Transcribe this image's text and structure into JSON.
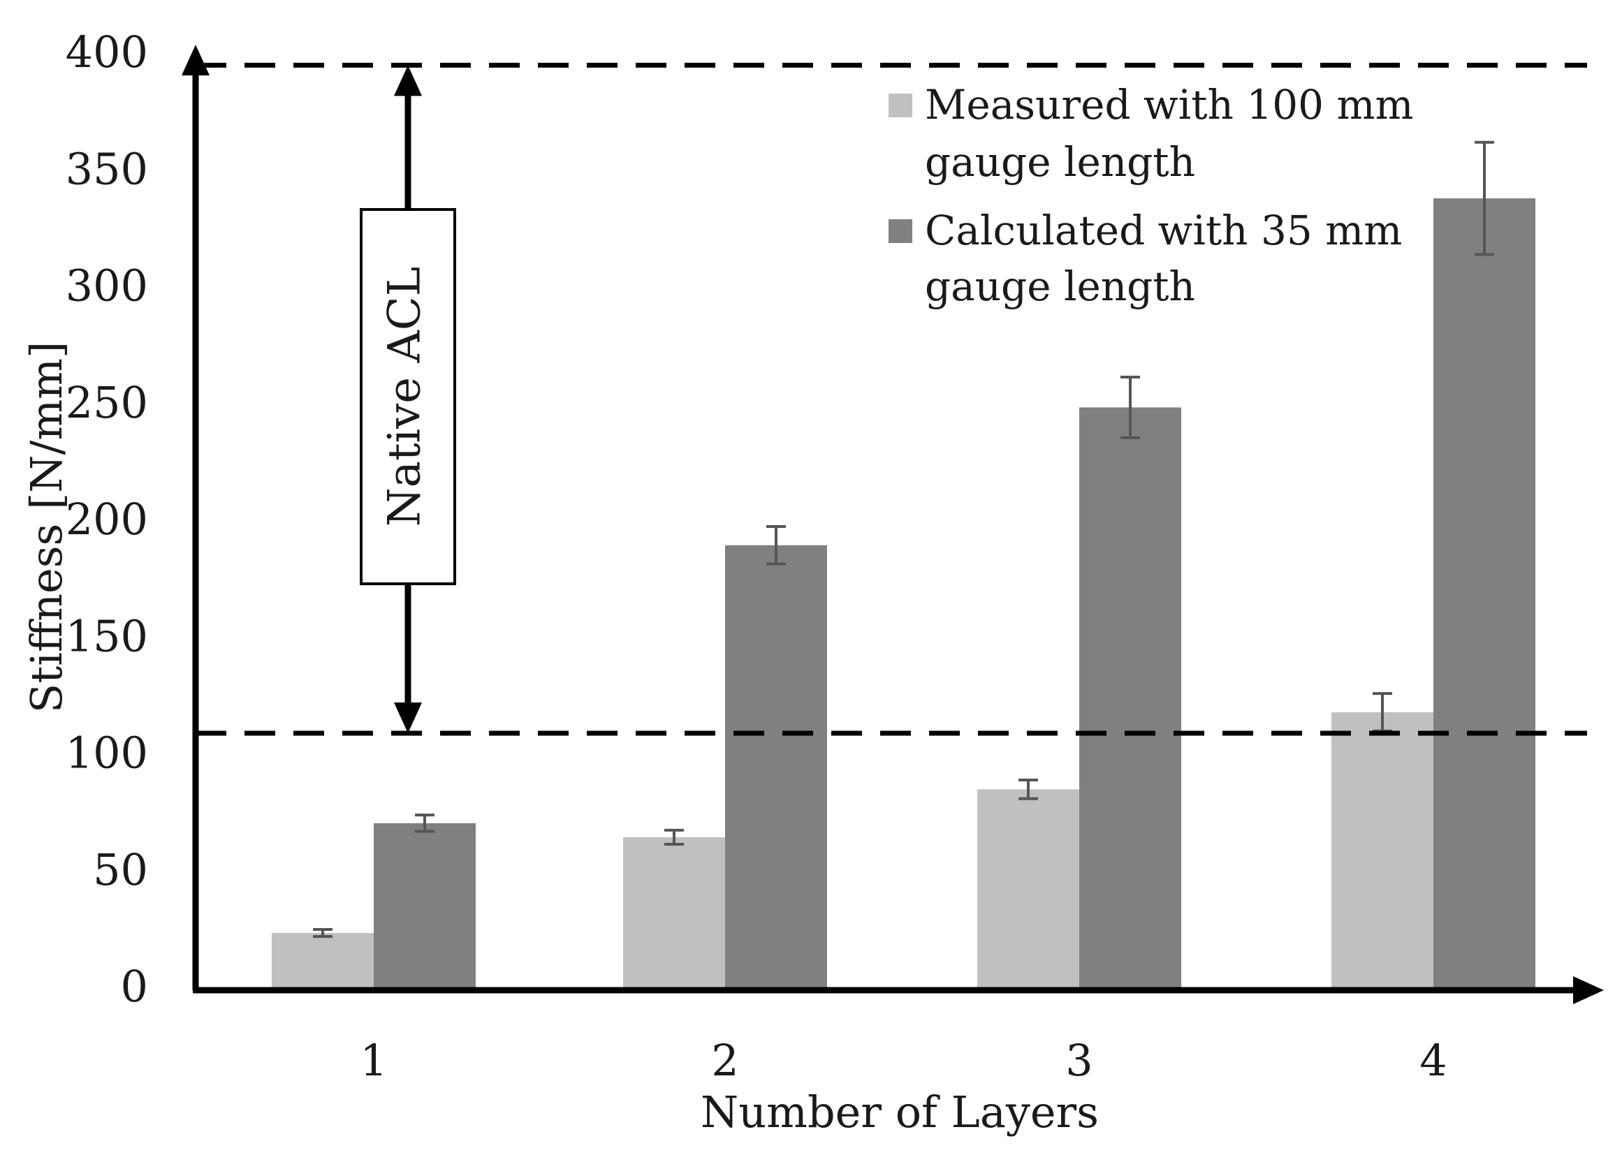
{
  "chart_data": {
    "type": "bar",
    "title": "",
    "xlabel": "Number of Layers",
    "ylabel": "Stiffness [N/mm]",
    "categories": [
      "1",
      "2",
      "3",
      "4"
    ],
    "ylim": [
      0,
      400
    ],
    "yticks": [
      0,
      50,
      100,
      150,
      200,
      250,
      300,
      350,
      400
    ],
    "grid": false,
    "legend_position": "top-right",
    "series": [
      {
        "name": "Measured with 100 mm gauge length",
        "legend_lines": [
          "Measured with 100 mm",
          "gauge length"
        ],
        "color": "#c0c0c0",
        "values": [
          24.5,
          65.5,
          86,
          119
        ],
        "errors": [
          1.5,
          3,
          4,
          8
        ]
      },
      {
        "name": "Calculated with 35 mm gauge length",
        "legend_lines": [
          "Calculated with 35 mm",
          "gauge length"
        ],
        "color": "#808080",
        "values": [
          71.5,
          190.5,
          249.5,
          339
        ],
        "errors": [
          3.5,
          8,
          13,
          24
        ]
      }
    ],
    "reference_lines": [
      {
        "value": 110,
        "style": "dashed"
      },
      {
        "value": 396,
        "style": "dashed"
      }
    ],
    "annotation": {
      "label": "Native ACL",
      "range": [
        110,
        396
      ]
    }
  }
}
